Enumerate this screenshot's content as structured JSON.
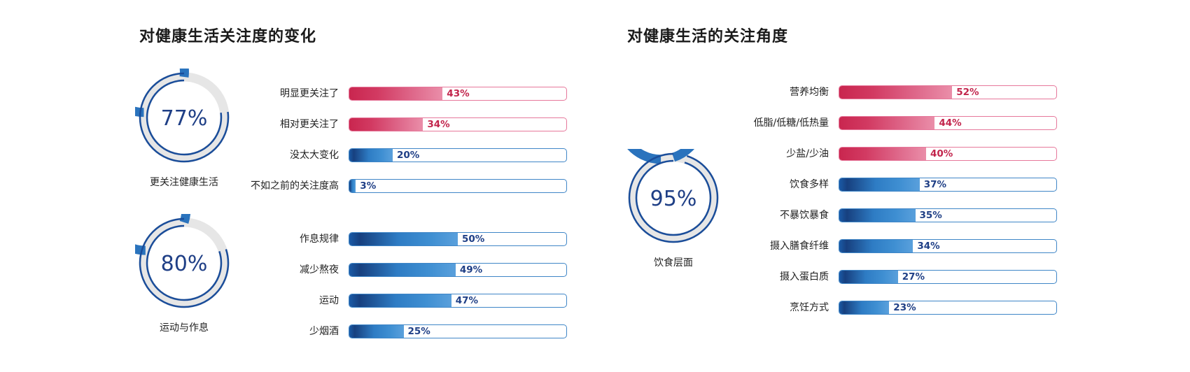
{
  "colors": {
    "blue_text": "#1f3f86",
    "pink_text": "#c2254c",
    "blue_border": "#3f86c7",
    "pink_border": "#e6789b",
    "ring_track": "#e6e6e6"
  },
  "left_panel": {
    "title": "对健康生活关注度的变化",
    "donuts": [
      {
        "value_label": "77%",
        "caption": "更关注健康生活"
      },
      {
        "value_label": "80%",
        "caption": "运动与作息"
      }
    ]
  },
  "right_panel": {
    "title": "对健康生活的关注角度",
    "donuts": [
      {
        "value_label": "95%",
        "caption": "饮食层面"
      }
    ]
  },
  "chart_data": [
    {
      "type": "pie",
      "subtype": "donut",
      "caption": "更关注健康生活",
      "value": 77
    },
    {
      "type": "bar",
      "orientation": "horizontal",
      "title": "对健康生活关注度的变化",
      "categories": [
        "明显更关注了",
        "相对更关注了",
        "没太大变化",
        "不如之前的关注度高"
      ],
      "values": [
        43,
        34,
        20,
        3
      ],
      "value_labels": [
        "43%",
        "34%",
        "20%",
        "3%"
      ],
      "colors": [
        "pink",
        "pink",
        "blue",
        "blue"
      ],
      "xlim": [
        0,
        100
      ]
    },
    {
      "type": "pie",
      "subtype": "donut",
      "caption": "运动与作息",
      "value": 80
    },
    {
      "type": "bar",
      "orientation": "horizontal",
      "categories": [
        "作息规律",
        "减少熬夜",
        "运动",
        "少烟酒"
      ],
      "values": [
        50,
        49,
        47,
        25
      ],
      "value_labels": [
        "50%",
        "49%",
        "47%",
        "25%"
      ],
      "colors": [
        "blue",
        "blue",
        "blue",
        "blue"
      ],
      "xlim": [
        0,
        100
      ]
    },
    {
      "type": "pie",
      "subtype": "donut",
      "caption": "饮食层面",
      "value": 95
    },
    {
      "type": "bar",
      "orientation": "horizontal",
      "title": "对健康生活的关注角度",
      "categories": [
        "营养均衡",
        "低脂/低糖/低热量",
        "少盐/少油",
        "饮食多样",
        "不暴饮暴食",
        "摄入膳食纤维",
        "摄入蛋白质",
        "烹饪方式"
      ],
      "values": [
        52,
        44,
        40,
        37,
        35,
        34,
        27,
        23
      ],
      "value_labels": [
        "52%",
        "44%",
        "40%",
        "37%",
        "35%",
        "34%",
        "27%",
        "23%"
      ],
      "colors": [
        "pink",
        "pink",
        "pink",
        "blue",
        "blue",
        "blue",
        "blue",
        "blue"
      ],
      "xlim": [
        0,
        100
      ]
    }
  ]
}
